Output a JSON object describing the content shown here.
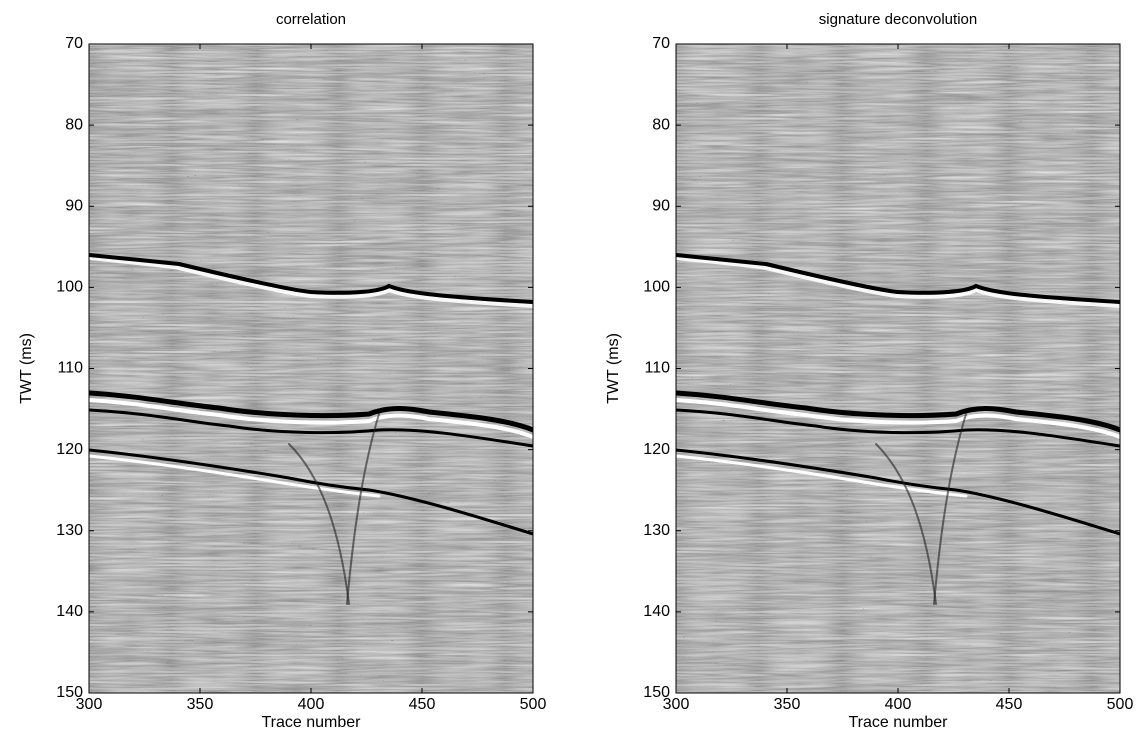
{
  "chart_data": [
    {
      "type": "image",
      "title": "correlation",
      "xlabel": "Trace number",
      "ylabel": "TWT (ms)",
      "xlim": [
        300,
        500
      ],
      "xticks": [
        300,
        350,
        400,
        450,
        500
      ],
      "ylim": [
        70,
        150
      ],
      "yticks": [
        70,
        80,
        90,
        100,
        110,
        120,
        130,
        140,
        150
      ],
      "y_inverted": true,
      "seed": 3
    },
    {
      "type": "image",
      "title": "signature deconvolution",
      "xlabel": "Trace number",
      "ylabel": "TWT (ms)",
      "xlim": [
        300,
        500
      ],
      "xticks": [
        300,
        350,
        400,
        450,
        500
      ],
      "ylim": [
        70,
        150
      ],
      "yticks": [
        70,
        80,
        90,
        100,
        110,
        120,
        130,
        140,
        150
      ],
      "y_inverted": true,
      "seed": 11
    }
  ]
}
